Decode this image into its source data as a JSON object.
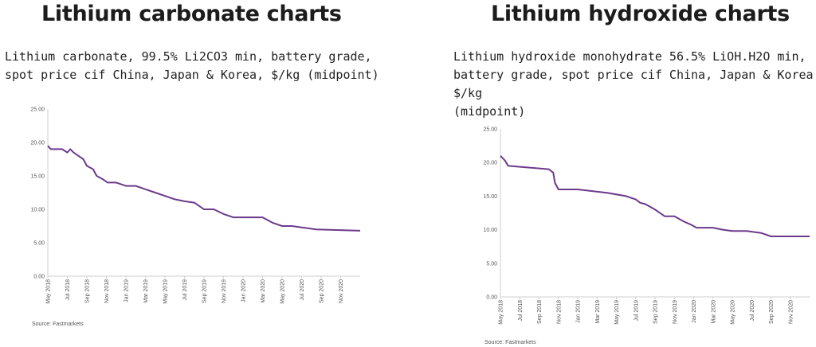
{
  "left": {
    "heading": "Lithium carbonate charts",
    "subtitle_line1": "Lithium carbonate, 99.5% Li2CO3 min, battery grade,",
    "subtitle_line2": "spot price cif China, Japan & Korea, $/kg (midpoint)",
    "source": "Source: Fastmarkets"
  },
  "right": {
    "heading": "Lithium hydroxide charts",
    "subtitle_line1": "Lithium hydroxide monohydrate 56.5% LiOH.H2O min,",
    "subtitle_line2": "battery grade, spot price cif China, Japan & Korea $/kg",
    "subtitle_line3": "(midpoint)",
    "source": "Source: Fastmarkets"
  },
  "chart_data": [
    {
      "type": "line",
      "ylim": [
        0,
        25
      ],
      "yticks": [
        "0.00",
        "5.00",
        "10.00",
        "15.00",
        "20.00",
        "25.00"
      ],
      "xlim": [
        "2018-05",
        "2020-12"
      ],
      "xticks": [
        "May 2018",
        "Jul 2018",
        "Sep 2018",
        "Nov 2018",
        "Jan 2019",
        "Mar 2019",
        "May 2019",
        "Jul 2019",
        "Sep 2019",
        "Nov 2019",
        "Jan 2020",
        "Mar 2020",
        "May 2020",
        "Jul 2020",
        "Sep 2020",
        "Nov 2020"
      ],
      "color": "#6b3a8c",
      "grid": false,
      "series": [
        {
          "x": [
            "2018-05-01",
            "2018-05-10",
            "2018-06-15",
            "2018-07-01",
            "2018-07-10",
            "2018-07-20",
            "2018-08-05",
            "2018-08-20",
            "2018-09-01",
            "2018-09-20",
            "2018-10-01",
            "2018-10-20",
            "2018-11-05",
            "2018-12-01",
            "2019-01-01",
            "2019-02-01",
            "2019-03-01",
            "2019-04-01",
            "2019-05-01",
            "2019-06-01",
            "2019-07-01",
            "2019-08-01",
            "2019-09-01",
            "2019-10-01",
            "2019-11-01",
            "2019-12-01",
            "2020-01-01",
            "2020-03-01",
            "2020-04-01",
            "2020-05-01",
            "2020-06-01",
            "2020-07-01",
            "2020-08-15",
            "2020-12-31"
          ],
          "y": [
            19.5,
            19.0,
            19.0,
            18.5,
            19.0,
            18.5,
            18.0,
            17.5,
            16.5,
            16.0,
            15.0,
            14.5,
            14.0,
            14.0,
            13.5,
            13.5,
            13.0,
            12.5,
            12.0,
            11.5,
            11.2,
            11.0,
            10.0,
            10.0,
            9.3,
            8.8,
            8.8,
            8.8,
            8.0,
            7.5,
            7.5,
            7.3,
            7.0,
            6.8
          ]
        }
      ]
    },
    {
      "type": "line",
      "ylim": [
        0,
        25
      ],
      "yticks": [
        "0.00",
        "5.00",
        "10.00",
        "15.00",
        "20.00",
        "25.00"
      ],
      "xlim": [
        "2018-05",
        "2020-12"
      ],
      "xticks": [
        "May 2018",
        "Jul 2018",
        "Sep 2018",
        "Nov 2018",
        "Jan 2019",
        "Mar 2019",
        "May 2019",
        "Jul 2019",
        "Sep 2019",
        "Nov 2019",
        "Jan 2020",
        "Mar 2020",
        "May 2020",
        "Jul 2020",
        "Sep 2020",
        "Nov 2020"
      ],
      "color": "#6b3a8c",
      "grid": false,
      "series": [
        {
          "x": [
            "2018-05-01",
            "2018-05-15",
            "2018-05-25",
            "2018-10-01",
            "2018-10-15",
            "2018-10-20",
            "2018-11-01",
            "2019-01-01",
            "2019-04-01",
            "2019-06-01",
            "2019-07-01",
            "2019-07-15",
            "2019-08-01",
            "2019-09-01",
            "2019-10-01",
            "2019-11-01",
            "2019-12-01",
            "2019-12-20",
            "2020-01-10",
            "2020-03-01",
            "2020-04-01",
            "2020-05-01",
            "2020-06-15",
            "2020-08-01",
            "2020-09-01",
            "2020-12-31"
          ],
          "y": [
            21.0,
            20.3,
            19.5,
            19.0,
            18.5,
            17.0,
            16.0,
            16.0,
            15.5,
            15.0,
            14.5,
            14.0,
            13.8,
            13.0,
            12.0,
            12.0,
            11.2,
            10.8,
            10.3,
            10.3,
            10.0,
            9.8,
            9.8,
            9.5,
            9.0,
            9.0
          ]
        }
      ]
    }
  ]
}
